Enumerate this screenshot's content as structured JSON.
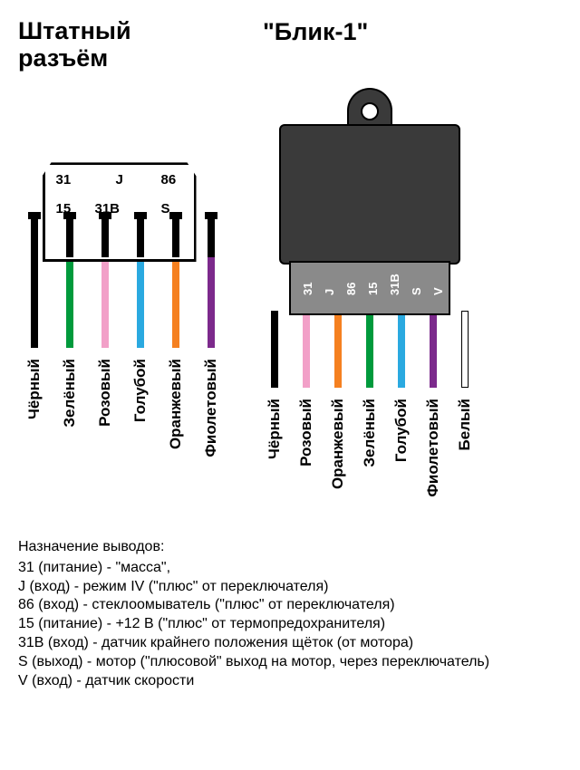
{
  "titles": {
    "left_line1": "Штатный",
    "left_line2": "разъём",
    "right": "\"Блик-1\""
  },
  "connector": {
    "pin_labels": {
      "r1c1": "31",
      "r1c2": "J",
      "r1c3": "86",
      "r2c1": "15",
      "r2c2": "31B",
      "r2c3": "S"
    },
    "wires": [
      {
        "color": "#000000",
        "label": "Чёрный"
      },
      {
        "color": "#009a3c",
        "label": "Зелёный"
      },
      {
        "color": "#f2a0c8",
        "label": "Розовый"
      },
      {
        "color": "#2aa9e0",
        "label": "Голубой"
      },
      {
        "color": "#f58020",
        "label": "Оранжевый"
      },
      {
        "color": "#7c2a8c",
        "label": "Фиолетовый"
      }
    ],
    "body_color": "#ffffff",
    "border_color": "#000000"
  },
  "module": {
    "body_color": "#3a3a3a",
    "plug_color": "#8a8a8a",
    "plug_labels": [
      "31",
      "J",
      "86",
      "15",
      "31B",
      "S",
      "V"
    ],
    "wires": [
      {
        "color": "#000000",
        "label": "Чёрный"
      },
      {
        "color": "#f2a0c8",
        "label": "Розовый"
      },
      {
        "color": "#f58020",
        "label": "Оранжевый"
      },
      {
        "color": "#009a3c",
        "label": "Зелёный"
      },
      {
        "color": "#2aa9e0",
        "label": "Голубой"
      },
      {
        "color": "#7c2a8c",
        "label": "Фиолетовый"
      },
      {
        "color": "#ffffff",
        "label": "Белый",
        "border": "#000000"
      }
    ]
  },
  "legend": {
    "title": "Назначение выводов:",
    "lines": [
      "31 (питание) - \"масса\",",
      "J (вход) - режим IV (\"плюс\" от переключателя)",
      "86 (вход) - стеклоомыватель (\"плюс\" от переключателя)",
      "15 (питание) - +12 В (\"плюс\" от термопредохранителя)",
      "31B (вход) - датчик крайнего положения щёток (от мотора)",
      "S (выход) - мотор (\"плюсовой\" выход на мотор, через переключатель)",
      "V (вход) - датчик скорости"
    ]
  }
}
